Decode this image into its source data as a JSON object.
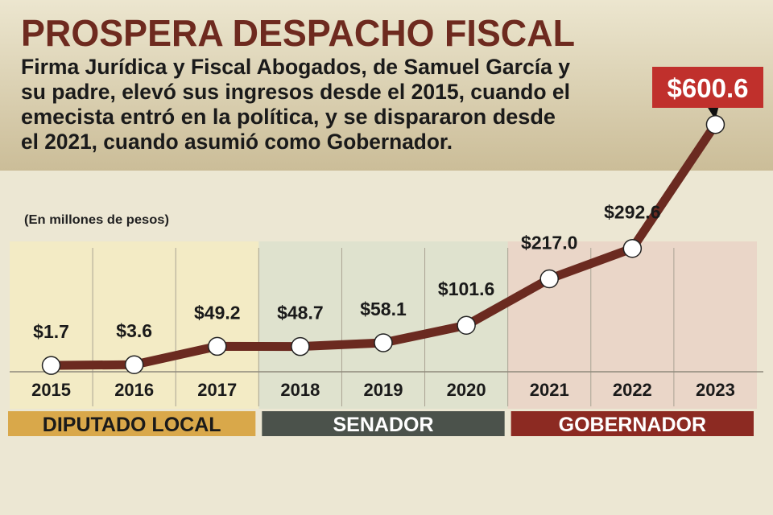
{
  "header": {
    "title": "PROSPERA DESPACHO FISCAL",
    "lines": [
      "Firma Jurídica y Fiscal Abogados, de Samuel García y",
      "su padre, elevó sus ingresos desde el 2015, cuando el",
      "emecista entró en la política, y se dispararon desde",
      "el 2021, cuando asumió como Gobernador."
    ]
  },
  "colors": {
    "title": "#6e2a1f",
    "line": "#6b2a20",
    "highlight_box": "#c0302c",
    "diputado": "#d9a84a",
    "senador": "#4b524b",
    "gobernador": "#8c2a22"
  },
  "chart_data": {
    "type": "line",
    "title": "PROSPERA DESPACHO FISCAL",
    "unit_note": "(En millones de pesos)",
    "categories": [
      "2015",
      "2016",
      "2017",
      "2018",
      "2019",
      "2020",
      "2021",
      "2022",
      "2023"
    ],
    "values": [
      1.7,
      3.6,
      49.2,
      48.7,
      58.1,
      101.6,
      217.0,
      292.6,
      600.6
    ],
    "labels": [
      "$1.7",
      "$3.6",
      "$49.2",
      "$48.7",
      "$58.1",
      "$101.6",
      "$217.0",
      "$292.6",
      "$600.6"
    ],
    "highlight_index": 8,
    "ylim": [
      0,
      620
    ],
    "grid": "vertical",
    "periods": [
      {
        "label": "DIPUTADO LOCAL",
        "start": 0,
        "end": 2,
        "color": "#d9a84a",
        "shade": "#f5ebc2"
      },
      {
        "label": "SENADOR",
        "start": 3,
        "end": 5,
        "color": "#4b524b",
        "shade": "#dde0cc"
      },
      {
        "label": "GOBERNADOR",
        "start": 6,
        "end": 8,
        "color": "#8c2a22",
        "shade": "#ead2c6"
      }
    ]
  }
}
